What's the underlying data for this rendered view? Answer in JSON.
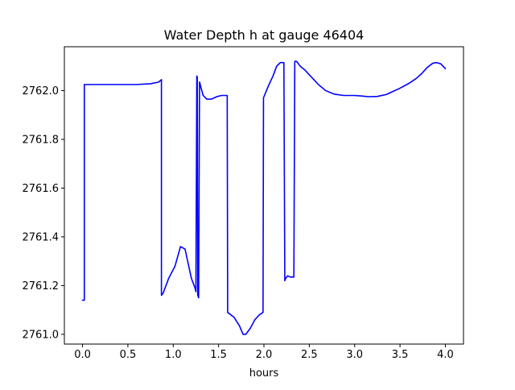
{
  "chart_data": {
    "type": "line",
    "title": "Water Depth h at gauge 46404",
    "xlabel": "hours",
    "ylabel": "",
    "xlim": [
      -0.2,
      4.2
    ],
    "ylim": [
      2760.96,
      2762.18
    ],
    "xticks": [
      0.0,
      0.5,
      1.0,
      1.5,
      2.0,
      2.5,
      3.0,
      3.5,
      4.0
    ],
    "xtick_labels": [
      "0.0",
      "0.5",
      "1.0",
      "1.5",
      "2.0",
      "2.5",
      "3.0",
      "3.5",
      "4.0"
    ],
    "yticks": [
      2761.0,
      2761.2,
      2761.4,
      2761.6,
      2761.8,
      2762.0
    ],
    "ytick_labels": [
      "2761.0",
      "2761.2",
      "2761.4",
      "2761.6",
      "2761.8",
      "2762.0"
    ],
    "grid": false,
    "line_color": "#0000ff",
    "series": [
      {
        "x": [
          0.0,
          0.02,
          0.02,
          0.3,
          0.6,
          0.75,
          0.84,
          0.87,
          0.87,
          0.89,
          0.95,
          1.02,
          1.08,
          1.13,
          1.2,
          1.24,
          1.25,
          1.26,
          1.265,
          1.27,
          1.28,
          1.29,
          1.295,
          1.3,
          1.33,
          1.37,
          1.42,
          1.48,
          1.53,
          1.58,
          1.595,
          1.6,
          1.6,
          1.67,
          1.73,
          1.77,
          1.8,
          1.85,
          1.9,
          1.95,
          1.99,
          1.995,
          2.0,
          2.05,
          2.1,
          2.14,
          2.18,
          2.22,
          2.23,
          2.24,
          2.26,
          2.29,
          2.33,
          2.34,
          2.36,
          2.4,
          2.45,
          2.5,
          2.55,
          2.6,
          2.68,
          2.78,
          2.88,
          3.0,
          3.07,
          3.15,
          3.25,
          3.35,
          3.42,
          3.5,
          3.6,
          3.68,
          3.74,
          3.8,
          3.86,
          3.9,
          3.95,
          4.0
        ],
        "y": [
          2761.14,
          2761.14,
          2762.025,
          2762.025,
          2762.025,
          2762.028,
          2762.035,
          2762.045,
          2761.16,
          2761.17,
          2761.23,
          2761.28,
          2761.36,
          2761.35,
          2761.23,
          2761.19,
          2761.175,
          2762.06,
          2762.055,
          2761.16,
          2761.15,
          2762.035,
          2762.03,
          2762.02,
          2761.98,
          2761.965,
          2761.965,
          2761.975,
          2761.98,
          2761.98,
          2761.98,
          2761.1,
          2761.09,
          2761.07,
          2761.035,
          2761.0,
          2761.0,
          2761.025,
          2761.06,
          2761.08,
          2761.09,
          2761.97,
          2761.975,
          2762.02,
          2762.06,
          2762.1,
          2762.115,
          2762.115,
          2761.22,
          2761.23,
          2761.24,
          2761.235,
          2761.235,
          2762.12,
          2762.12,
          2762.1,
          2762.085,
          2762.065,
          2762.045,
          2762.025,
          2762.0,
          2761.985,
          2761.98,
          2761.98,
          2761.978,
          2761.975,
          2761.976,
          2761.984,
          2761.996,
          2762.01,
          2762.03,
          2762.05,
          2762.07,
          2762.095,
          2762.112,
          2762.115,
          2762.11,
          2762.09
        ]
      }
    ]
  }
}
